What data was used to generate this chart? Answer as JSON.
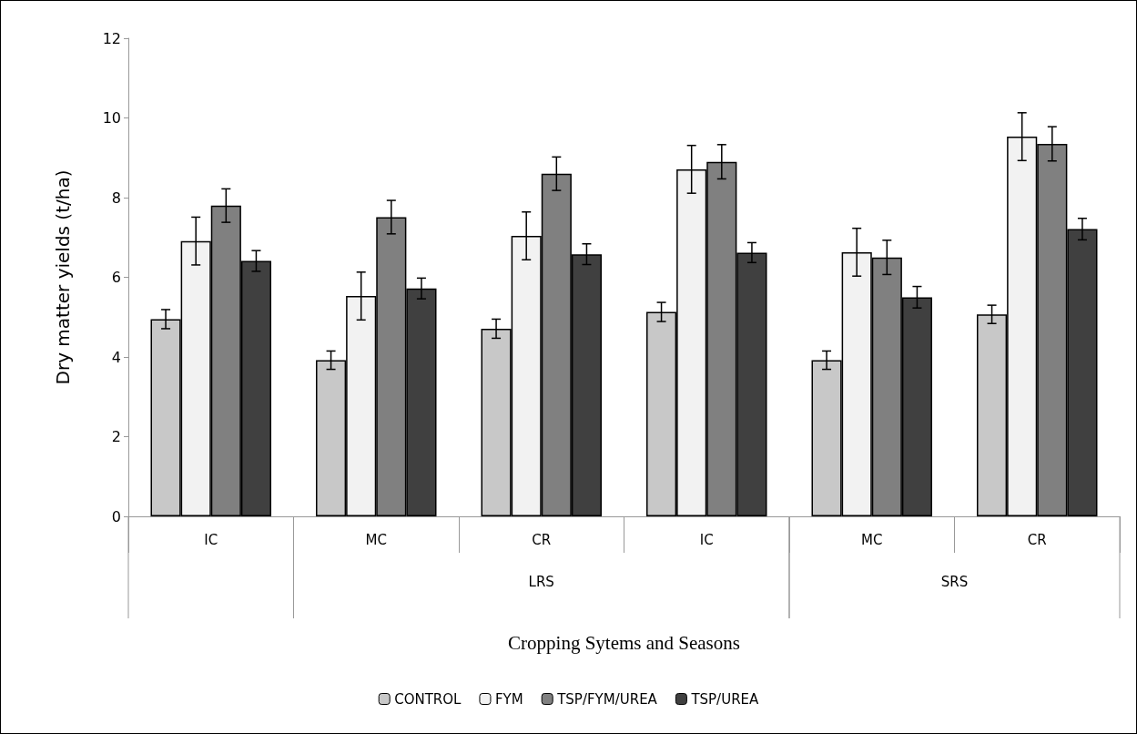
{
  "chart_data": {
    "type": "bar",
    "ylabel": "Dry matter yields (t/ha)",
    "xlabel": "Cropping Sytems and Seasons",
    "categories": [
      "IC",
      "MC",
      "CR",
      "IC",
      "MC",
      "CR"
    ],
    "annotations": [
      "LRS",
      "SRS"
    ],
    "series": [
      {
        "name": "CONTROL",
        "color": "#c8c8c8",
        "values": [
          4.95,
          3.92,
          4.71,
          5.13,
          3.92,
          5.07
        ],
        "errors": [
          0.24,
          0.23,
          0.24,
          0.24,
          0.23,
          0.23
        ]
      },
      {
        "name": "FYM",
        "color": "#f2f2f2",
        "values": [
          6.91,
          5.53,
          7.04,
          8.71,
          6.63,
          9.53
        ],
        "errors": [
          0.6,
          0.6,
          0.6,
          0.6,
          0.6,
          0.6
        ]
      },
      {
        "name": "TSP/FYM/UREA",
        "color": "#808080",
        "values": [
          7.8,
          7.51,
          8.6,
          8.9,
          6.5,
          9.35
        ],
        "errors": [
          0.42,
          0.42,
          0.42,
          0.43,
          0.43,
          0.43
        ]
      },
      {
        "name": "TSP/UREA",
        "color": "#404040",
        "values": [
          6.41,
          5.72,
          6.58,
          6.62,
          5.5,
          7.21
        ],
        "errors": [
          0.26,
          0.26,
          0.26,
          0.25,
          0.27,
          0.27
        ]
      }
    ],
    "ylim": [
      0,
      12
    ],
    "yticks": [
      0,
      2,
      4,
      6,
      8,
      10,
      12
    ],
    "grid": false,
    "legend": "bottom"
  }
}
